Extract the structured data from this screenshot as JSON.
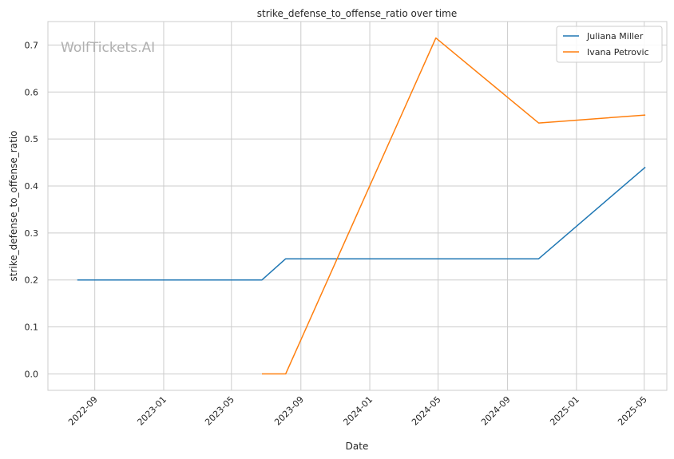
{
  "watermark": "WolfTickets.AI",
  "colors": {
    "series_1": "#1f77b4",
    "series_2": "#ff7f0e",
    "grid": "#cccccc",
    "frame": "#cccccc"
  },
  "chart_data": {
    "type": "line",
    "title": "strike_defense_to_offense_ratio over time",
    "xlabel": "Date",
    "ylabel": "strike_defense_to_offense_ratio",
    "x_type": "date",
    "xlim": [
      "2022-06-10",
      "2025-06-10"
    ],
    "ylim": [
      -0.035,
      0.75
    ],
    "x_ticks": [
      "2022-09-01",
      "2023-01-01",
      "2023-05-01",
      "2023-09-01",
      "2024-01-01",
      "2024-05-01",
      "2024-09-01",
      "2025-01-01",
      "2025-05-01"
    ],
    "x_tick_labels": [
      "2022-09",
      "2023-01",
      "2023-05",
      "2023-09",
      "2024-01",
      "2024-05",
      "2024-09",
      "2025-01",
      "2025-05"
    ],
    "y_ticks": [
      0.0,
      0.1,
      0.2,
      0.3,
      0.4,
      0.5,
      0.6,
      0.7
    ],
    "y_tick_labels": [
      "0.0",
      "0.1",
      "0.2",
      "0.3",
      "0.4",
      "0.5",
      "0.6",
      "0.7"
    ],
    "grid": true,
    "legend_position": "top-right",
    "series": [
      {
        "name": "Juliana Miller",
        "color": "#1f77b4",
        "points": [
          {
            "x": "2022-08-01",
            "y": 0.2
          },
          {
            "x": "2023-06-24",
            "y": 0.2
          },
          {
            "x": "2023-08-05",
            "y": 0.245
          },
          {
            "x": "2024-10-26",
            "y": 0.245
          },
          {
            "x": "2025-05-03",
            "y": 0.44
          }
        ]
      },
      {
        "name": "Ivana Petrovic",
        "color": "#ff7f0e",
        "points": [
          {
            "x": "2023-06-24",
            "y": 0.0
          },
          {
            "x": "2023-08-05",
            "y": 0.0
          },
          {
            "x": "2024-04-27",
            "y": 0.715
          },
          {
            "x": "2024-10-26",
            "y": 0.534
          },
          {
            "x": "2025-05-03",
            "y": 0.551
          }
        ]
      }
    ]
  }
}
